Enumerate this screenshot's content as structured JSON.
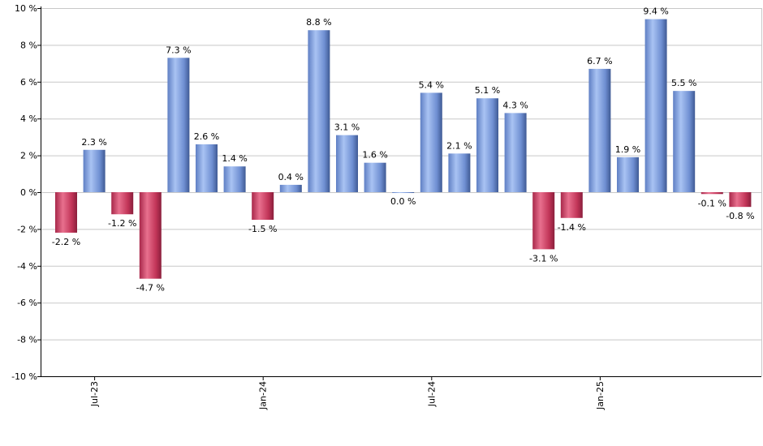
{
  "chart_data": {
    "type": "bar",
    "title": "",
    "xlabel": "",
    "ylabel": "",
    "ylim": [
      -10,
      10
    ],
    "yticks": [
      10,
      8,
      6,
      4,
      2,
      0,
      -2,
      -4,
      -6,
      -8,
      -10
    ],
    "ytick_suffix": " %",
    "grid": true,
    "x_tick_labels": [
      {
        "label": "Jul-23",
        "index": 1
      },
      {
        "label": "Jan-24",
        "index": 7
      },
      {
        "label": "Jul-24",
        "index": 13
      },
      {
        "label": "Jan-25",
        "index": 19
      }
    ],
    "values": [
      -2.2,
      2.3,
      -1.2,
      -4.7,
      7.3,
      2.6,
      1.4,
      -1.5,
      0.4,
      8.8,
      3.1,
      1.6,
      0.0,
      5.4,
      2.1,
      5.1,
      4.3,
      -3.1,
      -1.4,
      6.7,
      1.9,
      9.4,
      5.5,
      -0.1,
      -0.8
    ],
    "data_labels": [
      "-2.2 %",
      "2.3 %",
      "-1.2 %",
      "-4.7 %",
      "7.3 %",
      "2.6 %",
      "1.4 %",
      "-1.5 %",
      "0.4 %",
      "8.8 %",
      "3.1 %",
      "1.6 %",
      "0.0 %",
      "5.4 %",
      "2.1 %",
      "5.1 %",
      "4.3 %",
      "-3.1 %",
      "-1.4 %",
      "6.7 %",
      "1.9 %",
      "9.4 %",
      "5.5 %",
      "-0.1 %",
      "-0.8 %"
    ],
    "colors": {
      "positive": "#7d9fe0",
      "positive_dark": "#3f5a94",
      "negative": "#c8385e",
      "negative_dark": "#8a1f3c",
      "grid": "#c8c8c8",
      "axis": "#000000"
    }
  }
}
